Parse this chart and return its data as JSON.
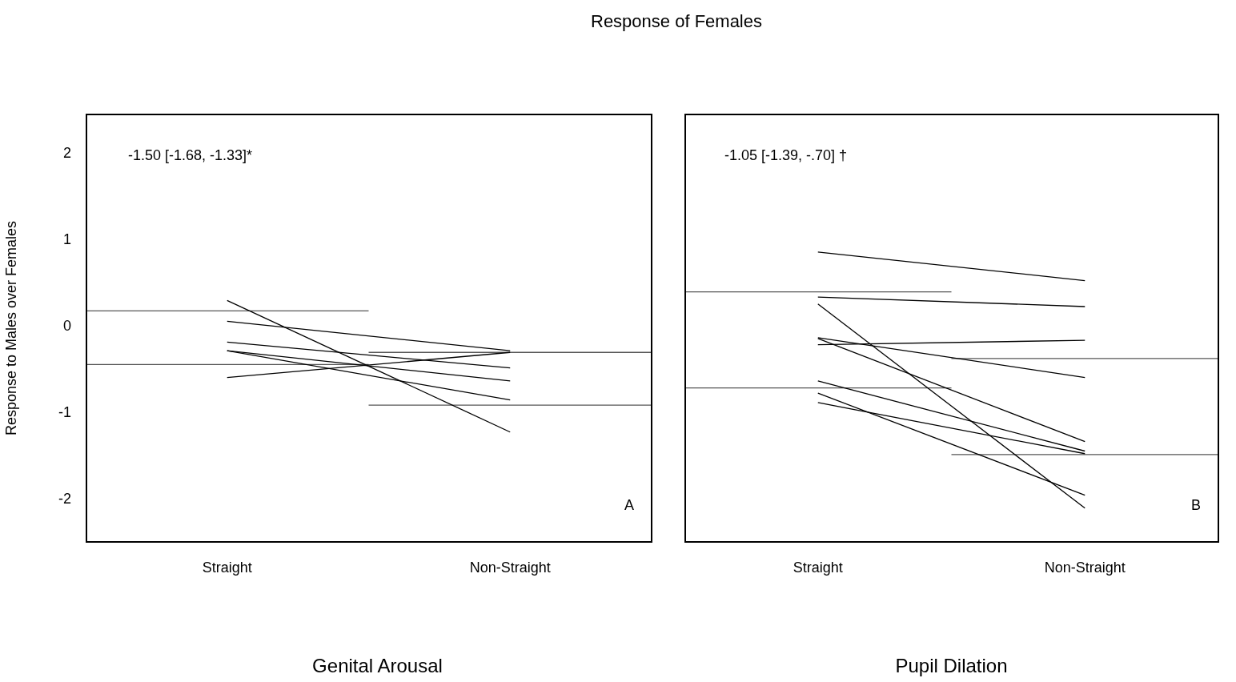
{
  "chart_data": [
    {
      "type": "line",
      "title": "Response of Females",
      "xlabel": "Genital Arousal",
      "ylabel": "Response to Males over Females",
      "categories": [
        null,
        "Straight",
        null,
        "Non-Straight",
        null
      ],
      "ylim": [
        -2.49,
        2.45
      ],
      "yticks": [
        -2,
        -1,
        0,
        1,
        2
      ],
      "marker": "none",
      "line_style": "solid",
      "legend": false,
      "annotations": [
        "-1.50 [-1.68, -1.33]*",
        "A"
      ],
      "series": [
        {
          "color": "#000000",
          "values": [
            null,
            0.3,
            null,
            -1.22,
            null
          ]
        },
        {
          "color": "#000000",
          "values": [
            null,
            0.06,
            null,
            -0.28,
            null
          ]
        },
        {
          "color": "#000000",
          "values": [
            null,
            -0.18,
            null,
            -0.48,
            null
          ]
        },
        {
          "color": "#000000",
          "values": [
            null,
            -0.28,
            null,
            -0.63,
            null
          ]
        },
        {
          "color": "#000000",
          "values": [
            null,
            -0.28,
            null,
            -0.85,
            null
          ]
        },
        {
          "color": "#000000",
          "values": [
            null,
            -0.59,
            null,
            -0.3,
            null
          ]
        },
        {
          "color": "#555555",
          "values": [
            0.18,
            0.18,
            0.18,
            null,
            null
          ]
        },
        {
          "color": "#555555",
          "values": [
            -0.44,
            -0.44,
            -0.44,
            null,
            null
          ]
        },
        {
          "color": "#555555",
          "values": [
            null,
            null,
            -0.3,
            -0.3,
            -0.3
          ]
        },
        {
          "color": "#555555",
          "values": [
            null,
            null,
            -0.91,
            -0.91,
            -0.91
          ]
        }
      ]
    },
    {
      "type": "line",
      "xlabel": "Pupil Dilation",
      "categories": [
        null,
        "Straight",
        null,
        "Non-Straight",
        null
      ],
      "ylim": [
        -2.49,
        2.45
      ],
      "tick_labels": "x",
      "marker": "none",
      "line_style": "solid",
      "legend": false,
      "annotations": [
        "-1.05 [-1.39, -.70] †",
        "B"
      ],
      "series": [
        {
          "color": "#000000",
          "values": [
            null,
            0.86,
            null,
            0.53,
            null
          ]
        },
        {
          "color": "#000000",
          "values": [
            null,
            0.34,
            null,
            0.23,
            null
          ]
        },
        {
          "color": "#000000",
          "values": [
            null,
            0.26,
            null,
            -2.1,
            null
          ]
        },
        {
          "color": "#000000",
          "values": [
            null,
            -0.21,
            null,
            -0.16,
            null
          ]
        },
        {
          "color": "#000000",
          "values": [
            null,
            -0.13,
            null,
            -0.59,
            null
          ]
        },
        {
          "color": "#000000",
          "values": [
            null,
            -0.14,
            null,
            -1.33,
            null
          ]
        },
        {
          "color": "#000000",
          "values": [
            null,
            -0.63,
            null,
            -1.44,
            null
          ]
        },
        {
          "color": "#000000",
          "values": [
            null,
            -0.77,
            null,
            -1.95,
            null
          ]
        },
        {
          "color": "#000000",
          "values": [
            null,
            -0.88,
            null,
            -1.47,
            null
          ]
        },
        {
          "color": "#555555",
          "values": [
            0.4,
            0.4,
            0.4,
            null,
            null
          ]
        },
        {
          "color": "#555555",
          "values": [
            -0.71,
            -0.71,
            -0.71,
            null,
            null
          ]
        },
        {
          "color": "#555555",
          "values": [
            null,
            null,
            -0.37,
            -0.37,
            -0.37
          ]
        },
        {
          "color": "#555555",
          "values": [
            null,
            null,
            -1.48,
            -1.48,
            -1.48
          ]
        }
      ]
    }
  ]
}
